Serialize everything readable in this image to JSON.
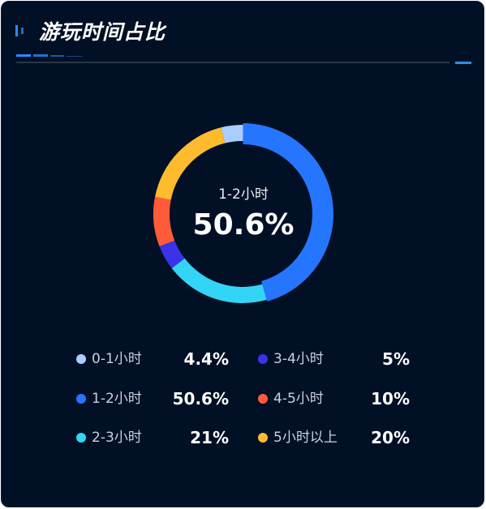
{
  "panel": {
    "title": "游玩时间占比",
    "accent": "#2b8bff",
    "background": "#021026"
  },
  "center": {
    "label": "1-2小时",
    "value": "50.6%"
  },
  "chart_data": {
    "type": "pie",
    "style": "donut",
    "categories": [
      "0-1小时",
      "1-2小时",
      "2-3小时",
      "3-4小时",
      "4-5小时",
      "5小时以上"
    ],
    "values": [
      4.4,
      50.6,
      21,
      5,
      10,
      20
    ],
    "labels": [
      "4.4%",
      "50.6%",
      "21%",
      "5%",
      "10%",
      "20%"
    ],
    "colors": [
      "#a9cdff",
      "#2675ff",
      "#32d5f5",
      "#3b33e8",
      "#ff5b3a",
      "#ffbb2e"
    ],
    "highlighted": "1-2小时",
    "legend_placement": "bottom"
  },
  "legend": [
    {
      "name": "0-1小时",
      "value": "4.4%",
      "color": "#a9cdff"
    },
    {
      "name": "3-4小时",
      "value": "5%",
      "color": "#3b33e8"
    },
    {
      "name": "1-2小时",
      "value": "50.6%",
      "color": "#2675ff"
    },
    {
      "name": "4-5小时",
      "value": "10%",
      "color": "#ff5b3a"
    },
    {
      "name": "2-3小时",
      "value": "21%",
      "color": "#32d5f5"
    },
    {
      "name": "5小时以上",
      "value": "20%",
      "color": "#ffbb2e"
    }
  ]
}
